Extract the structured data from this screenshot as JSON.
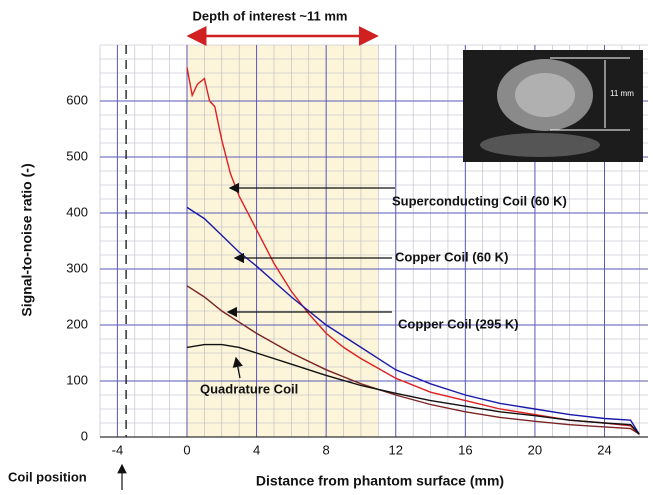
{
  "chart_data": {
    "type": "line",
    "title": "Depth of interest ~11 mm",
    "x_label": "Distance from phantom surface (mm)",
    "y_label": "Signal-to-noise ratio (-)",
    "xlim": [
      -5,
      26.5
    ],
    "ylim": [
      0,
      700
    ],
    "xticks": [
      -4,
      0,
      4,
      8,
      12,
      16,
      20,
      24
    ],
    "yticks": [
      0,
      100,
      200,
      300,
      400,
      500,
      600
    ],
    "grid": true,
    "minor_grid": {
      "x": 1,
      "y": 25
    },
    "depth_of_interest": [
      0,
      11
    ],
    "coil_position": {
      "x": -3.5,
      "label": "Coil position"
    },
    "inset_label": "11 mm",
    "series": [
      {
        "name": "Superconducting Coil (60 K)",
        "color": "#e02020",
        "x": [
          0,
          0.3,
          0.6,
          1,
          1.3,
          1.6,
          2,
          2.5,
          3,
          4,
          5,
          6,
          7,
          8,
          9,
          10,
          12,
          14,
          16,
          18,
          20,
          22,
          24,
          25.5,
          26
        ],
        "values": [
          660,
          610,
          630,
          640,
          600,
          590,
          530,
          470,
          430,
          370,
          310,
          260,
          220,
          185,
          160,
          140,
          105,
          80,
          65,
          50,
          40,
          30,
          25,
          20,
          5
        ]
      },
      {
        "name": "Copper Coil (60 K)",
        "color": "#1a1aa8",
        "x": [
          0,
          1,
          2,
          3,
          4,
          6,
          8,
          10,
          12,
          14,
          16,
          18,
          20,
          22,
          24,
          25.5,
          26
        ],
        "values": [
          410,
          390,
          360,
          330,
          305,
          250,
          200,
          160,
          120,
          95,
          75,
          60,
          50,
          40,
          33,
          30,
          5
        ]
      },
      {
        "name": "Copper Coil (295 K)",
        "color": "#7a2424",
        "x": [
          0,
          1,
          2,
          3,
          4,
          6,
          8,
          10,
          12,
          14,
          16,
          18,
          20,
          22,
          24,
          25.5,
          26
        ],
        "values": [
          270,
          250,
          225,
          205,
          185,
          150,
          120,
          95,
          75,
          58,
          45,
          35,
          28,
          22,
          18,
          15,
          5
        ]
      },
      {
        "name": "Quadrature Coil",
        "color": "#111111",
        "x": [
          0,
          1,
          2,
          3,
          4,
          6,
          8,
          10,
          12,
          14,
          16,
          18,
          20,
          22,
          24,
          25.5,
          26
        ],
        "values": [
          160,
          165,
          165,
          160,
          150,
          130,
          110,
          92,
          78,
          65,
          55,
          45,
          38,
          30,
          25,
          22,
          5
        ]
      }
    ]
  }
}
